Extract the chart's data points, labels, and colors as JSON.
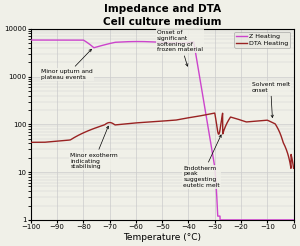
{
  "title": "Impedance and DTA\nCell culture medium",
  "xlabel": "Temperature (°C)",
  "xlim": [
    -100,
    0
  ],
  "background_color": "#f0f0e8",
  "grid_color": "#cccccc",
  "z_color": "#cc44cc",
  "dta_color": "#992222",
  "legend_entries": [
    "Z Heating",
    "DTA Heating"
  ],
  "legend_line_colors": [
    "#cc44cc",
    "#992222"
  ]
}
